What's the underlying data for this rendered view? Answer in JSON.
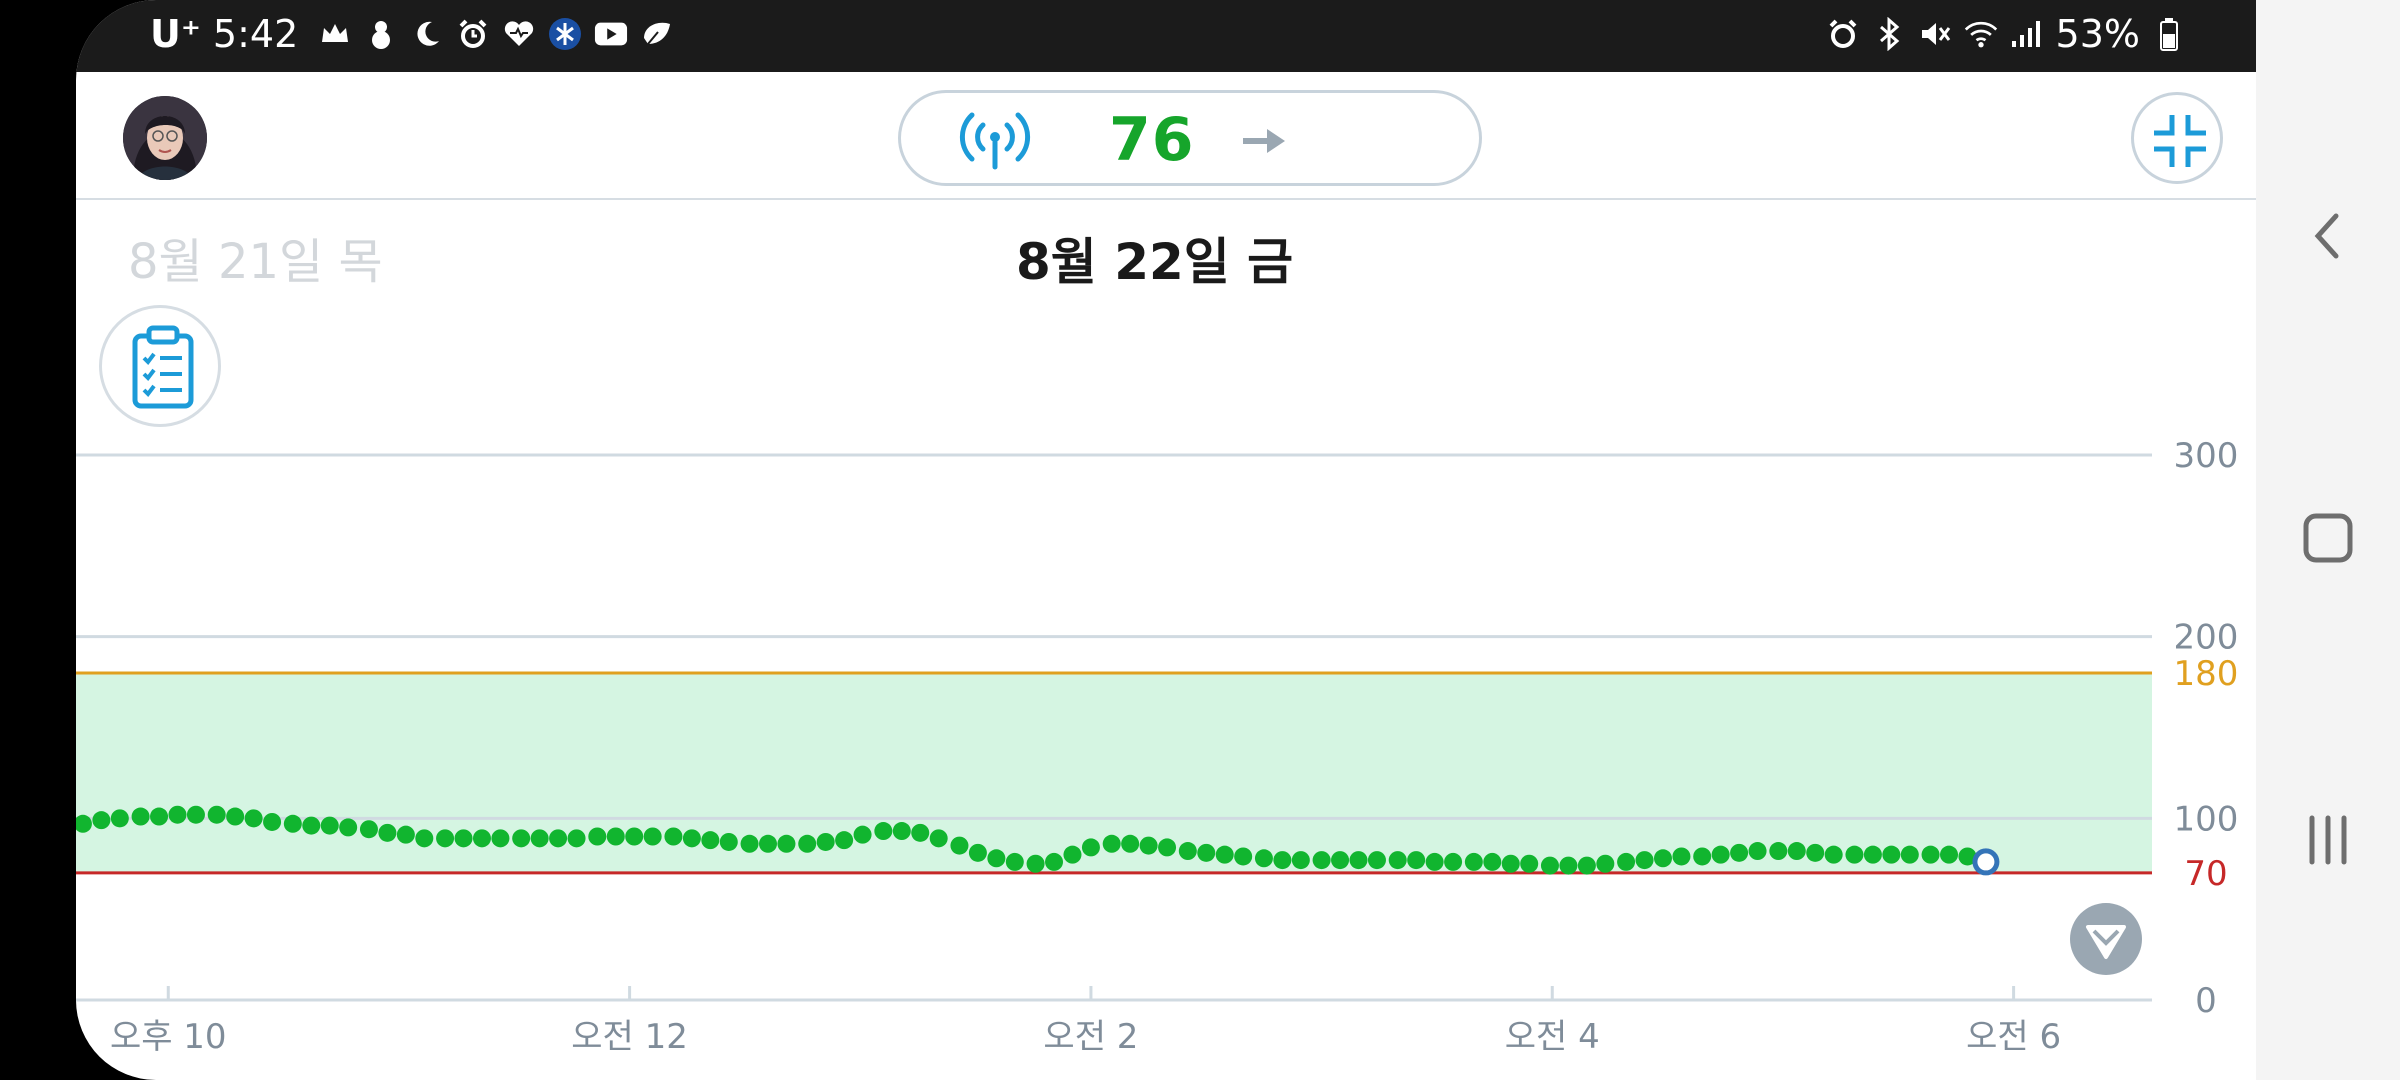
{
  "status_bar": {
    "carrier": "U⁺",
    "time": "5:42",
    "battery": "53%",
    "left_icons": [
      "crown-icon",
      "snowman-icon",
      "moon-icon",
      "alarm-icon",
      "heart-icon",
      "bluetooth-app-icon",
      "youtube-icon",
      "leaf-icon"
    ],
    "right_icons": [
      "alarm-icon",
      "bluetooth-icon",
      "mute-icon",
      "wifi-icon",
      "signal-icon",
      "battery-icon"
    ]
  },
  "header": {
    "current_value": "76",
    "trend": "steady",
    "sensor_icon": "sensor-signal-icon",
    "compress_icon": "compress-icon"
  },
  "dates": {
    "previous": "8월 21일 목",
    "current": "8월 22일 금"
  },
  "chart_data": {
    "type": "scatter",
    "x_unit": "hours",
    "x_range": [
      21.6,
      30.6
    ],
    "x_ticks": [
      {
        "value": 22,
        "label": "오후 10"
      },
      {
        "value": 24,
        "label": "오전 12"
      },
      {
        "value": 26,
        "label": "오전 2"
      },
      {
        "value": 28,
        "label": "오전 4"
      },
      {
        "value": 30,
        "label": "오전 6"
      }
    ],
    "y_range": [
      0,
      300
    ],
    "y_ticks": [
      {
        "value": 300,
        "label": "300"
      },
      {
        "value": 200,
        "label": "200"
      },
      {
        "value": 100,
        "label": "100"
      },
      {
        "value": 0,
        "label": "0"
      }
    ],
    "target_range": {
      "low": 70,
      "high": 180,
      "low_label": "70",
      "high_label": "180"
    },
    "colors": {
      "point": "#11b52f",
      "last_point": "#3474b8",
      "target_fill": "#d5f5e2",
      "low_line": "#c62828",
      "high_line": "#e0a020",
      "grid": "#d0dae1",
      "tick_text": "#7f8c99"
    },
    "points": [
      [
        21.63,
        97
      ],
      [
        21.71,
        99
      ],
      [
        21.79,
        100
      ],
      [
        21.88,
        101
      ],
      [
        21.96,
        101
      ],
      [
        22.04,
        102
      ],
      [
        22.12,
        102
      ],
      [
        22.21,
        102
      ],
      [
        22.29,
        101
      ],
      [
        22.37,
        100
      ],
      [
        22.45,
        98
      ],
      [
        22.54,
        97
      ],
      [
        22.62,
        96
      ],
      [
        22.7,
        96
      ],
      [
        22.78,
        95
      ],
      [
        22.87,
        94
      ],
      [
        22.95,
        92
      ],
      [
        23.03,
        91
      ],
      [
        23.11,
        89
      ],
      [
        23.2,
        89
      ],
      [
        23.28,
        89
      ],
      [
        23.36,
        89
      ],
      [
        23.44,
        89
      ],
      [
        23.53,
        89
      ],
      [
        23.61,
        89
      ],
      [
        23.69,
        89
      ],
      [
        23.77,
        89
      ],
      [
        23.86,
        90
      ],
      [
        23.94,
        90
      ],
      [
        24.02,
        90
      ],
      [
        24.1,
        90
      ],
      [
        24.19,
        90
      ],
      [
        24.27,
        89
      ],
      [
        24.35,
        88
      ],
      [
        24.43,
        87
      ],
      [
        24.52,
        86
      ],
      [
        24.6,
        86
      ],
      [
        24.68,
        86
      ],
      [
        24.77,
        86
      ],
      [
        24.85,
        87
      ],
      [
        24.93,
        88
      ],
      [
        25.01,
        91
      ],
      [
        25.1,
        93
      ],
      [
        25.18,
        93
      ],
      [
        25.26,
        92
      ],
      [
        25.34,
        89
      ],
      [
        25.43,
        85
      ],
      [
        25.51,
        81
      ],
      [
        25.59,
        78
      ],
      [
        25.67,
        76
      ],
      [
        25.76,
        75
      ],
      [
        25.84,
        76
      ],
      [
        25.92,
        80
      ],
      [
        26.0,
        84
      ],
      [
        26.09,
        86
      ],
      [
        26.17,
        86
      ],
      [
        26.25,
        85
      ],
      [
        26.33,
        84
      ],
      [
        26.42,
        82
      ],
      [
        26.5,
        81
      ],
      [
        26.58,
        80
      ],
      [
        26.66,
        79
      ],
      [
        26.75,
        78
      ],
      [
        26.83,
        77
      ],
      [
        26.91,
        77
      ],
      [
        27.0,
        77
      ],
      [
        27.08,
        77
      ],
      [
        27.16,
        77
      ],
      [
        27.24,
        77
      ],
      [
        27.33,
        77
      ],
      [
        27.41,
        77
      ],
      [
        27.49,
        76
      ],
      [
        27.57,
        76
      ],
      [
        27.66,
        76
      ],
      [
        27.74,
        76
      ],
      [
        27.82,
        75
      ],
      [
        27.9,
        75
      ],
      [
        27.99,
        74
      ],
      [
        28.07,
        74
      ],
      [
        28.15,
        74
      ],
      [
        28.23,
        75
      ],
      [
        28.32,
        76
      ],
      [
        28.4,
        77
      ],
      [
        28.48,
        78
      ],
      [
        28.56,
        79
      ],
      [
        28.65,
        79
      ],
      [
        28.73,
        80
      ],
      [
        28.81,
        81
      ],
      [
        28.89,
        82
      ],
      [
        28.98,
        82
      ],
      [
        29.06,
        82
      ],
      [
        29.14,
        81
      ],
      [
        29.22,
        80
      ],
      [
        29.31,
        80
      ],
      [
        29.39,
        80
      ],
      [
        29.47,
        80
      ],
      [
        29.55,
        80
      ],
      [
        29.64,
        80
      ],
      [
        29.72,
        80
      ],
      [
        29.8,
        79
      ],
      [
        29.88,
        76
      ]
    ]
  }
}
